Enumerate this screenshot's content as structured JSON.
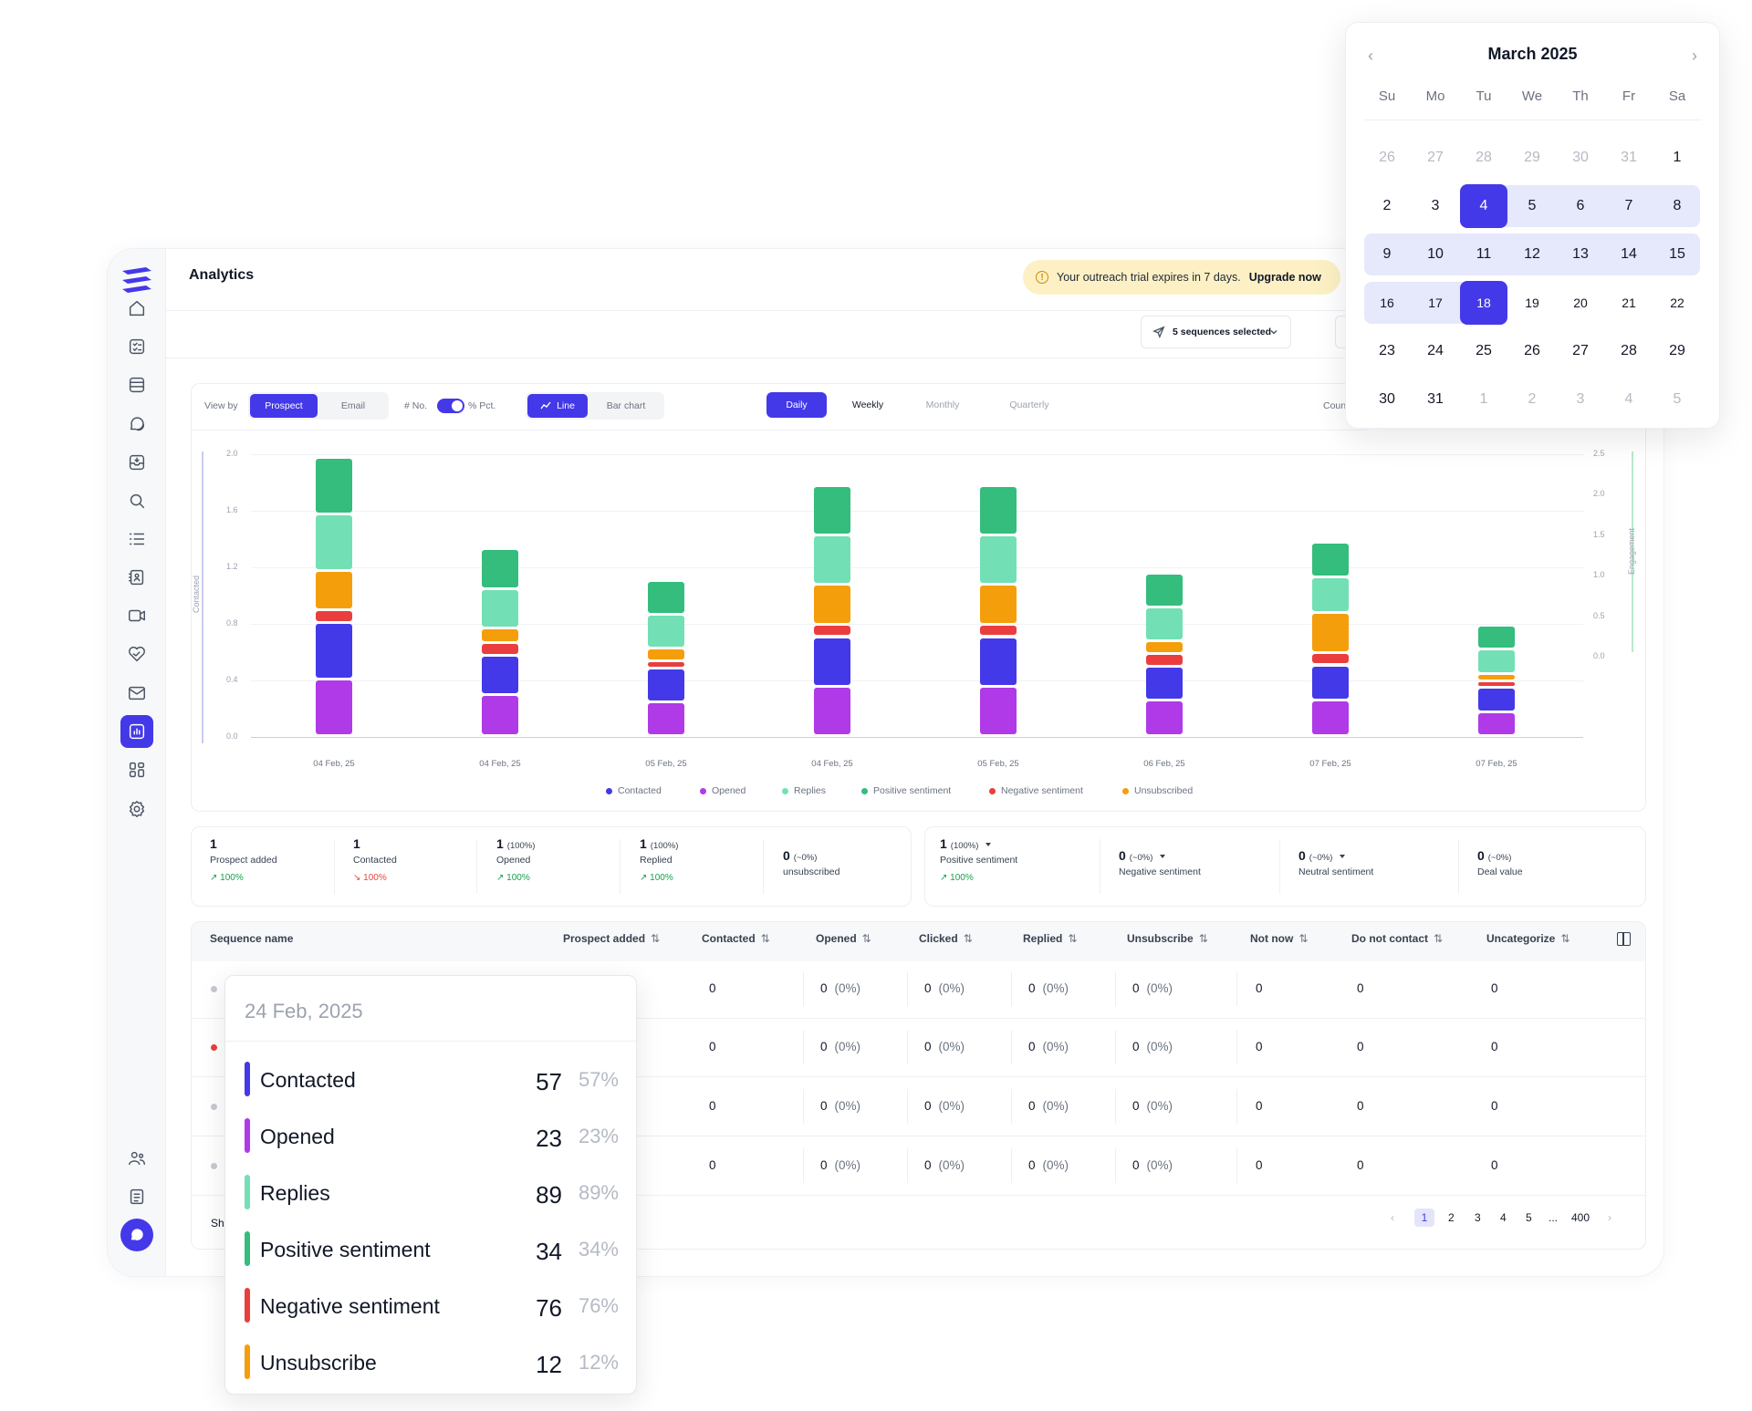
{
  "app": {
    "title": "Analytics"
  },
  "trial": {
    "message": "Your outreach trial expires in 7 days.",
    "upgrade_label": "Upgrade now",
    "icon": "warning-icon"
  },
  "sidebar": {
    "items": [
      {
        "icon": "home-icon"
      },
      {
        "icon": "tasks-icon"
      },
      {
        "icon": "sequences-icon"
      },
      {
        "icon": "conversations-icon"
      },
      {
        "icon": "inbox-icon"
      },
      {
        "icon": "search-icon"
      },
      {
        "icon": "list-icon"
      },
      {
        "icon": "contacts-icon"
      },
      {
        "icon": "video-icon"
      },
      {
        "icon": "deals-icon"
      },
      {
        "icon": "mail-icon"
      },
      {
        "icon": "analytics-icon",
        "active": true
      },
      {
        "icon": "apps-icon"
      },
      {
        "icon": "settings-icon"
      }
    ],
    "bottom": [
      {
        "icon": "team-icon"
      },
      {
        "icon": "notes-icon"
      },
      {
        "icon": "chat-icon"
      }
    ]
  },
  "filters": {
    "sequences_label": "5 sequences selected"
  },
  "controls": {
    "view_by_label": "View by",
    "view_by_options": [
      "Prospect",
      "Email"
    ],
    "view_by_selected": "Prospect",
    "no_label": "# No.",
    "pct_label": "% Pct.",
    "chart_types": [
      "Line",
      "Bar chart"
    ],
    "chart_type_selected": "Line",
    "periods": [
      "Daily",
      "Weekly",
      "Monthly",
      "Quarterly"
    ],
    "period_selected": "Daily",
    "count_label": "Count"
  },
  "chart_data": {
    "type": "bar",
    "stacked": true,
    "categories": [
      "04 Feb, 25",
      "04 Feb, 25",
      "05 Feb, 25",
      "04 Feb, 25",
      "05 Feb, 25",
      "06 Feb, 25",
      "07 Feb, 25",
      "07 Feb, 25"
    ],
    "ylabel": "Contacted",
    "y2label": "Engagement",
    "ylim": [
      0,
      2.0
    ],
    "yticks": [
      "0.0",
      "0.4",
      "0.8",
      "1.2",
      "1.6",
      "2.0"
    ],
    "y2ticks": [
      "0.0",
      "0.5",
      "1.0",
      "1.5",
      "2.0",
      "2.5"
    ],
    "legend_position": "bottom",
    "series": [
      {
        "name": "Contacted",
        "color": "#4339e8",
        "values": [
          0.4,
          0.28,
          0.24,
          0.35,
          0.35,
          0.24,
          0.25,
          0.17
        ]
      },
      {
        "name": "Opened",
        "color": "#b03ae8",
        "values": [
          0.4,
          0.29,
          0.24,
          0.35,
          0.35,
          0.25,
          0.25,
          0.17
        ]
      },
      {
        "name": "Replies",
        "color": "#72e0b4",
        "values": [
          0.4,
          0.28,
          0.24,
          0.35,
          0.35,
          0.24,
          0.25,
          0.17
        ]
      },
      {
        "name": "Positive sentiment",
        "color": "#34bd7c",
        "values": [
          0.4,
          0.28,
          0.24,
          0.35,
          0.35,
          0.24,
          0.25,
          0.17
        ]
      },
      {
        "name": "Negative sentiment",
        "color": "#ea3e3e",
        "values": [
          0.09,
          0.09,
          0.05,
          0.09,
          0.09,
          0.09,
          0.09,
          0.05
        ]
      },
      {
        "name": "Unsubscribed",
        "color": "#f59e0b",
        "values": [
          0.28,
          0.1,
          0.09,
          0.28,
          0.28,
          0.09,
          0.28,
          0.05
        ]
      }
    ]
  },
  "stats_left": [
    {
      "value": "1",
      "sub": "",
      "label": "Prospect added",
      "delta": "100%",
      "dir": "up"
    },
    {
      "value": "1",
      "sub": "",
      "label": "Contacted",
      "delta": "100%",
      "dir": "down"
    },
    {
      "value": "1",
      "sub": "(100%)",
      "label": "Opened",
      "delta": "100%",
      "dir": "up"
    },
    {
      "value": "1",
      "sub": "(100%)",
      "label": "Replied",
      "delta": "100%",
      "dir": "up"
    },
    {
      "value": "0",
      "sub": "(~0%)",
      "label": "unsubscribed",
      "delta": "",
      "dir": ""
    }
  ],
  "stats_right": [
    {
      "value": "1",
      "sub": "(100%)",
      "label": "Positive sentiment",
      "delta": "100%",
      "dir": "up",
      "dropdown": true
    },
    {
      "value": "0",
      "sub": "(~0%)",
      "label": "Negative sentiment",
      "delta": "",
      "dir": "",
      "dropdown": true
    },
    {
      "value": "0",
      "sub": "(~0%)",
      "label": "Neutral sentiment",
      "delta": "",
      "dir": "",
      "dropdown": true
    },
    {
      "value": "0",
      "sub": "(~0%)",
      "label": "Deal value",
      "delta": "",
      "dir": "",
      "dropdown": false
    }
  ],
  "table": {
    "columns": [
      "Sequence name",
      "Prospect added",
      "Contacted",
      "Opened",
      "Clicked",
      "Replied",
      "Unsubscribe",
      "Not now",
      "Do not contact",
      "Uncategorize"
    ],
    "rows": [
      {
        "status_color": "#c5c9d1",
        "contacted": "0",
        "opened": "0",
        "opened_pct": "(0%)",
        "clicked": "0",
        "clicked_pct": "(0%)",
        "replied": "0",
        "replied_pct": "(0%)",
        "unsub": "0",
        "unsub_pct": "(0%)",
        "not_now": "0",
        "dnc": "0",
        "uncat": "0"
      },
      {
        "status_color": "#ea3e3e",
        "contacted": "0",
        "opened": "0",
        "opened_pct": "(0%)",
        "clicked": "0",
        "clicked_pct": "(0%)",
        "replied": "0",
        "replied_pct": "(0%)",
        "unsub": "0",
        "unsub_pct": "(0%)",
        "not_now": "0",
        "dnc": "0",
        "uncat": "0"
      },
      {
        "status_color": "#c5c9d1",
        "contacted": "0",
        "opened": "0",
        "opened_pct": "(0%)",
        "clicked": "0",
        "clicked_pct": "(0%)",
        "replied": "0",
        "replied_pct": "(0%)",
        "unsub": "0",
        "unsub_pct": "(0%)",
        "not_now": "0",
        "dnc": "0",
        "uncat": "0"
      },
      {
        "status_color": "#c5c9d1",
        "contacted": "0",
        "opened": "0",
        "opened_pct": "(0%)",
        "clicked": "0",
        "clicked_pct": "(0%)",
        "replied": "0",
        "replied_pct": "(0%)",
        "unsub": "0",
        "unsub_pct": "(0%)",
        "not_now": "0",
        "dnc": "0",
        "uncat": "0"
      }
    ],
    "footer_partial": "Sh",
    "pagination": {
      "pages": [
        "1",
        "2",
        "3",
        "4",
        "5",
        "...",
        "400"
      ],
      "current": "1",
      "prev": "‹",
      "next": "›"
    }
  },
  "tooltip": {
    "date": "24 Feb, 2025",
    "rows": [
      {
        "name": "Contacted",
        "value": "57",
        "pct": "57%",
        "color": "#4339e8"
      },
      {
        "name": "Opened",
        "value": "23",
        "pct": "23%",
        "color": "#b03ae8"
      },
      {
        "name": "Replies",
        "value": "89",
        "pct": "89%",
        "color": "#72e0b4"
      },
      {
        "name": "Positive sentiment",
        "value": "34",
        "pct": "34%",
        "color": "#34bd7c"
      },
      {
        "name": "Negative sentiment",
        "value": "76",
        "pct": "76%",
        "color": "#ea3e3e"
      },
      {
        "name": "Unsubscribe",
        "value": "12",
        "pct": "12%",
        "color": "#f59e0b"
      }
    ]
  },
  "calendar": {
    "title": "March 2025",
    "prev": "‹",
    "next": "›",
    "weekdays": [
      "Su",
      "Mo",
      "Tu",
      "We",
      "Th",
      "Fr",
      "Sa"
    ],
    "weeks": [
      [
        "26",
        "27",
        "28",
        "29",
        "30",
        "31",
        "1"
      ],
      [
        "2",
        "3",
        "4",
        "5",
        "6",
        "7",
        "8"
      ],
      [
        "9",
        "10",
        "11",
        "12",
        "13",
        "14",
        "15"
      ],
      [
        "16",
        "17",
        "18",
        "19",
        "20",
        "21",
        "22"
      ],
      [
        "23",
        "24",
        "25",
        "26",
        "27",
        "28",
        "29"
      ],
      [
        "30",
        "31",
        "1",
        "2",
        "3",
        "4",
        "5"
      ]
    ],
    "range_start": "4",
    "range_end": "18"
  },
  "colors": {
    "accent": "#4339e8",
    "trial_bg": "#fdf0c4",
    "range_bg": "#e6e8fb"
  }
}
